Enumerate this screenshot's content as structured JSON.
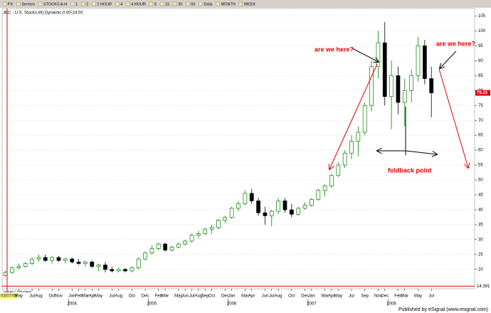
{
  "toolbar": [
    "PX",
    "Sectors",
    "STOCKS A-H",
    "1",
    "2",
    "2 HOUR",
    "4",
    "4 HOUR",
    "5",
    "15",
    "30",
    "60",
    "Daily",
    "MONTH",
    "WEEK"
  ],
  "footer": "Published by eSignal (www.esignal.com)",
  "copyright": "Copyright © 2008 eSignal",
  "chart_data": {
    "type": "candlestick",
    "title": "JEC - U.S. Stocks,W) Dynamic,0:00-24:00",
    "start_label": "03/07/03",
    "up_color": "#008000",
    "down_color": "#000000",
    "grid": true,
    "open": [
      18,
      19,
      20.5,
      21,
      22,
      23.5,
      24,
      23,
      24,
      23,
      23.5,
      22.5,
      22,
      22.5,
      21,
      21.5,
      20,
      19.5,
      20,
      19.5,
      20.5,
      23.5,
      25.5,
      27,
      28.5,
      26.5,
      27.5,
      28.5,
      29.5,
      31.5,
      32,
      33.5,
      34,
      36.5,
      37.5,
      40.5,
      42,
      45.5,
      43,
      39,
      38,
      39.5,
      43,
      40,
      38.5,
      40.5,
      41.5,
      43.5,
      46.5,
      48,
      51.5,
      55,
      59,
      63,
      66,
      75,
      88,
      96,
      78,
      85,
      76,
      80,
      85,
      95,
      84
    ],
    "high": [
      19.5,
      21,
      22,
      22.5,
      24,
      25,
      25,
      24.5,
      24.5,
      24,
      24,
      23.5,
      23,
      23,
      22,
      22.5,
      21,
      20.5,
      20.5,
      21,
      24,
      26,
      28,
      29,
      29,
      28,
      29,
      30,
      32,
      33,
      34,
      35,
      37,
      38,
      41,
      43,
      46.5,
      47,
      44,
      41,
      40,
      44,
      44,
      42,
      41,
      42.5,
      44,
      47,
      48.5,
      52,
      56,
      60,
      65,
      68,
      76,
      90,
      100,
      103,
      90,
      88,
      84,
      87,
      98,
      97,
      88
    ],
    "low": [
      17.5,
      18.5,
      20,
      20.5,
      21.5,
      22.5,
      22.5,
      22,
      22.5,
      22,
      22,
      21.5,
      21,
      20.5,
      19.5,
      19,
      19,
      19,
      19,
      19,
      20,
      23,
      25,
      26.5,
      26,
      26,
      27,
      28,
      29,
      30.5,
      31.5,
      32,
      33.5,
      35.5,
      37,
      39.5,
      41.5,
      42,
      38,
      35,
      34.5,
      38.5,
      39,
      37.5,
      38,
      40,
      41,
      43,
      44.5,
      47.5,
      51,
      54,
      57,
      58,
      65,
      73,
      84,
      75,
      67,
      72,
      68,
      76,
      83,
      82,
      71
    ],
    "close": [
      19,
      20.5,
      21,
      22,
      23.5,
      24,
      23,
      24,
      23,
      23.5,
      22.5,
      22,
      22.5,
      21,
      21.5,
      20,
      19.5,
      20,
      19.5,
      20.5,
      23.5,
      25.5,
      27,
      28.5,
      26.5,
      27.5,
      28.5,
      29.5,
      31.5,
      32,
      33.5,
      34,
      36.5,
      37.5,
      40.5,
      42,
      45.5,
      43,
      39,
      38,
      39.5,
      43,
      40,
      38.5,
      40.5,
      41.5,
      43.5,
      46.5,
      48,
      51.5,
      55,
      59,
      63,
      66,
      75,
      88,
      96,
      78,
      85,
      76,
      80,
      85,
      95,
      84,
      79.23
    ],
    "last_price": 79.23,
    "low_marker": 14.391,
    "xlim": [
      -0.5,
      70.5
    ],
    "xticks": [
      {
        "value": 2,
        "label": "May"
      },
      {
        "value": 4,
        "label": "Jul"
      },
      {
        "value": 5,
        "label": "Aug"
      },
      {
        "value": 7,
        "label": "Oct"
      },
      {
        "value": 8,
        "label": "Nov"
      },
      {
        "value": 10,
        "label": "Jan"
      },
      {
        "value": 11,
        "label": "Feb"
      },
      {
        "value": 12,
        "label": "Mar"
      },
      {
        "value": 13,
        "label": "Apr"
      },
      {
        "value": 14,
        "label": "May"
      },
      {
        "value": 16,
        "label": "Jul"
      },
      {
        "value": 17,
        "label": "Aug"
      },
      {
        "value": 19,
        "label": "Oct"
      },
      {
        "value": 21,
        "label": "Dec"
      },
      {
        "value": 23,
        "label": "Feb"
      },
      {
        "value": 24,
        "label": "Mar"
      },
      {
        "value": 26,
        "label": "May"
      },
      {
        "value": 27,
        "label": "Jun"
      },
      {
        "value": 28,
        "label": "Jul"
      },
      {
        "value": 29,
        "label": "Aug"
      },
      {
        "value": 30,
        "label": "Sep"
      },
      {
        "value": 31,
        "label": "Oct"
      },
      {
        "value": 33,
        "label": "Dec"
      },
      {
        "value": 34,
        "label": "Jan"
      },
      {
        "value": 36,
        "label": "Mar"
      },
      {
        "value": 37,
        "label": "Apr"
      },
      {
        "value": 39,
        "label": "Jun"
      },
      {
        "value": 40,
        "label": "Jul"
      },
      {
        "value": 41,
        "label": "Aug"
      },
      {
        "value": 43,
        "label": "Oct"
      },
      {
        "value": 45,
        "label": "Dec"
      },
      {
        "value": 46,
        "label": "Jan"
      },
      {
        "value": 48,
        "label": "Mar"
      },
      {
        "value": 49,
        "label": "Apr"
      },
      {
        "value": 50,
        "label": "May"
      },
      {
        "value": 52,
        "label": "Jul"
      },
      {
        "value": 54,
        "label": "Sep"
      },
      {
        "value": 56,
        "label": "Nov"
      },
      {
        "value": 57,
        "label": "Dec"
      },
      {
        "value": 59,
        "label": "Feb"
      },
      {
        "value": 60,
        "label": "Mar"
      },
      {
        "value": 62,
        "label": "May"
      },
      {
        "value": 64,
        "label": "Jul"
      }
    ],
    "year_ticks": [
      {
        "value": 10,
        "label": "2004"
      },
      {
        "value": 22,
        "label": "2005"
      },
      {
        "value": 34,
        "label": "2006"
      },
      {
        "value": 46,
        "label": "2007"
      },
      {
        "value": 58,
        "label": "2008"
      }
    ],
    "ylim": [
      13.5,
      107.5
    ],
    "yticks": [
      20,
      25,
      30,
      35,
      40,
      45,
      50,
      55,
      60,
      65,
      70,
      75,
      80,
      85,
      90,
      95,
      100,
      105
    ],
    "annotations": [
      "are we here?",
      "are we here?",
      "foldback point"
    ]
  }
}
